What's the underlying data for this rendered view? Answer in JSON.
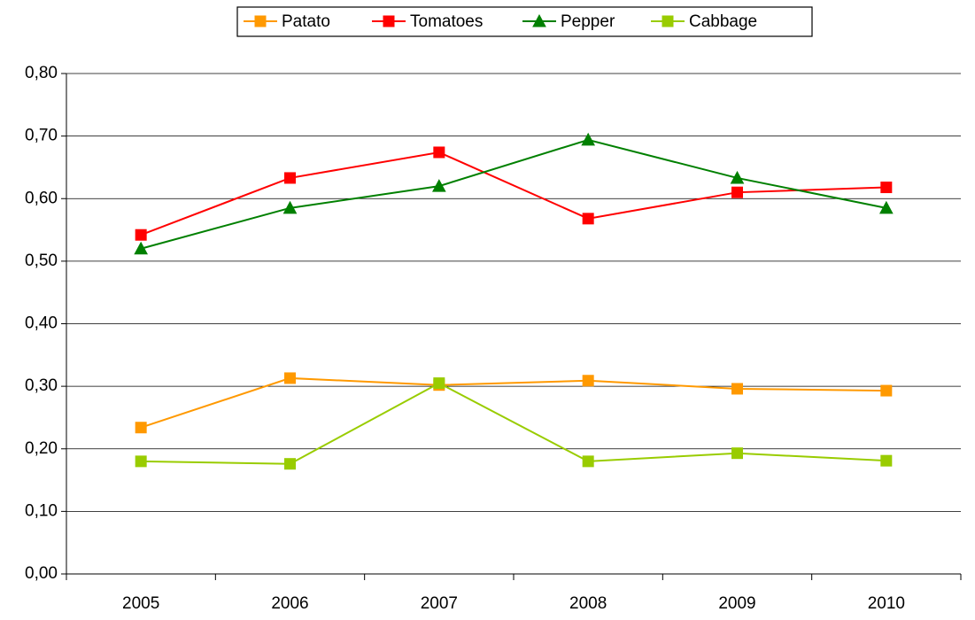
{
  "chart_data": {
    "type": "line",
    "categories": [
      "2005",
      "2006",
      "2007",
      "2008",
      "2009",
      "2010"
    ],
    "series": [
      {
        "name": "Patato",
        "color": "#ff9900",
        "marker": "square",
        "values": [
          0.234,
          0.313,
          0.302,
          0.309,
          0.296,
          0.293
        ]
      },
      {
        "name": "Tomatoes",
        "color": "#ff0000",
        "marker": "square",
        "values": [
          0.542,
          0.633,
          0.674,
          0.568,
          0.61,
          0.618
        ]
      },
      {
        "name": "Pepper",
        "color": "#008000",
        "marker": "triangle",
        "values": [
          0.52,
          0.585,
          0.62,
          0.694,
          0.633,
          0.585
        ]
      },
      {
        "name": "Cabbage",
        "color": "#99cc00",
        "marker": "square",
        "values": [
          0.18,
          0.176,
          0.305,
          0.18,
          0.193,
          0.181
        ]
      }
    ],
    "ylim": [
      0,
      0.8
    ],
    "yticks": [
      {
        "value": 0,
        "label": "0,00"
      },
      {
        "value": 0.1,
        "label": "0,10"
      },
      {
        "value": 0.2,
        "label": "0,20"
      },
      {
        "value": 0.3,
        "label": "0,30"
      },
      {
        "value": 0.4,
        "label": "0,40"
      },
      {
        "value": 0.5,
        "label": "0,50"
      },
      {
        "value": 0.6,
        "label": "0,60"
      },
      {
        "value": 0.7,
        "label": "0,70"
      },
      {
        "value": 0.8,
        "label": "0,80"
      }
    ],
    "grid": true,
    "legend": "top"
  }
}
